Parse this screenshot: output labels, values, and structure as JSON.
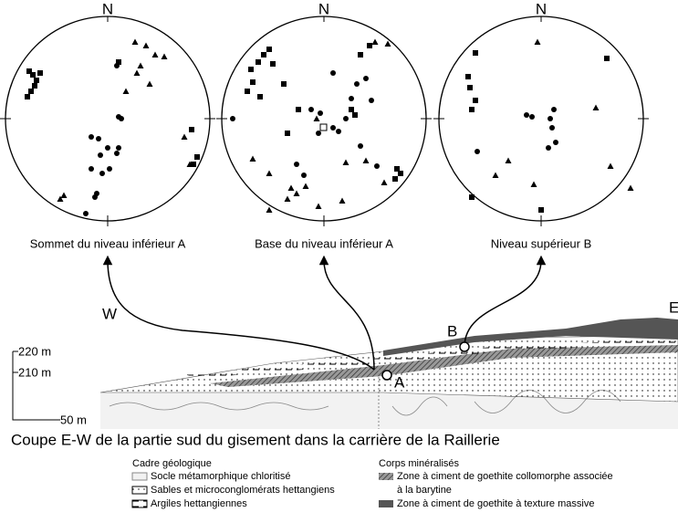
{
  "stereonets": [
    {
      "north": "N",
      "label": "Sommet du niveau inférieur A"
    },
    {
      "north": "N",
      "label": "Base du niveau inférieur A"
    },
    {
      "north": "N",
      "label": "Niveau supérieur B"
    }
  ],
  "section": {
    "west": "W",
    "east": "E",
    "point_b": "B",
    "point_a": "A",
    "scale": [
      "220 m",
      "210 m",
      "50 m"
    ],
    "caption": "Coupe E-W de la partie sud du gisement dans la carrière de la Raillerie"
  },
  "legend": {
    "groups": [
      {
        "title": "Cadre géologique",
        "items": [
          [
            "Socle métamorphique chloritisé"
          ],
          [
            "Sables et microconglomérats hettangiens"
          ],
          [
            "Argiles hettangiennes"
          ]
        ]
      },
      {
        "title": "Corps minéralisés",
        "items": [
          [
            "Zone à ciment de goethite collomorphe associée",
            "à la barytine"
          ],
          [
            "Zone à ciment de goethite à texture massive"
          ]
        ]
      }
    ]
  }
}
